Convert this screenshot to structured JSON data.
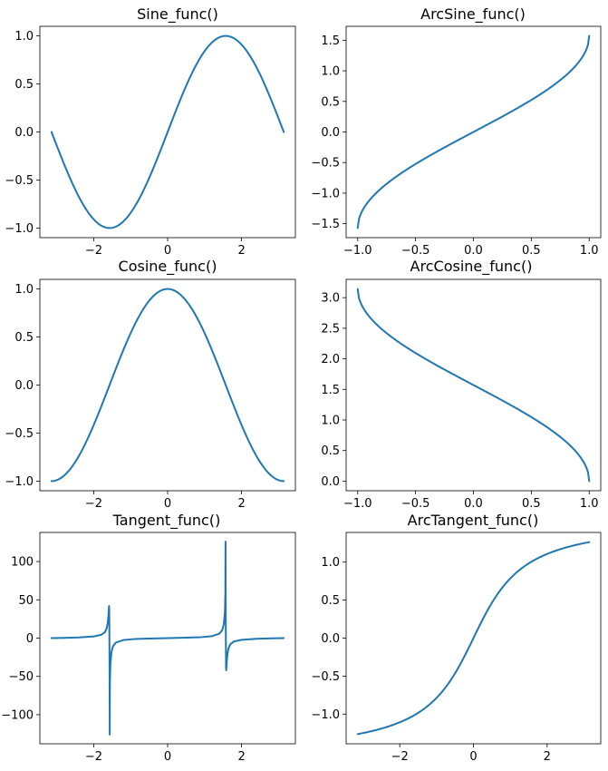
{
  "colors": {
    "line": "#1f77b4",
    "background": "#ffffff",
    "axes": "#000000"
  },
  "chart_data": [
    {
      "type": "line",
      "title": "Sine_func()",
      "func": "sin",
      "xrange": [
        -3.14159,
        3.14159
      ],
      "xlim": [
        -3.456,
        3.456
      ],
      "ylim": [
        -1.1,
        1.1
      ],
      "xticks": [
        -2,
        0,
        2
      ],
      "xtick_labels": [
        "−2",
        "0",
        "2"
      ],
      "yticks": [
        1.0,
        0.5,
        0.0,
        -0.5,
        -1.0
      ],
      "ytick_labels": [
        "1.0",
        "0.5",
        "0.0",
        "−0.5",
        "−1.0"
      ]
    },
    {
      "type": "line",
      "title": "ArcSine_func()",
      "func": "asin",
      "xrange": [
        -1,
        1
      ],
      "xlim": [
        -1.1,
        1.1
      ],
      "ylim": [
        -1.728,
        1.728
      ],
      "xticks": [
        -1.0,
        -0.5,
        0.0,
        0.5,
        1.0
      ],
      "xtick_labels": [
        "−1.0",
        "−0.5",
        "0.0",
        "0.5",
        "1.0"
      ],
      "yticks": [
        1.5,
        1.0,
        0.5,
        0.0,
        -0.5,
        -1.0,
        -1.5
      ],
      "ytick_labels": [
        "1.5",
        "1.0",
        "0.5",
        "0.0",
        "−0.5",
        "−1.0",
        "−1.5"
      ]
    },
    {
      "type": "line",
      "title": "Cosine_func()",
      "func": "cos",
      "xrange": [
        -3.14159,
        3.14159
      ],
      "xlim": [
        -3.456,
        3.456
      ],
      "ylim": [
        -1.1,
        1.1
      ],
      "xticks": [
        -2,
        0,
        2
      ],
      "xtick_labels": [
        "−2",
        "0",
        "2"
      ],
      "yticks": [
        1.0,
        0.5,
        0.0,
        -0.5,
        -1.0
      ],
      "ytick_labels": [
        "1.0",
        "0.5",
        "0.0",
        "−0.5",
        "−1.0"
      ]
    },
    {
      "type": "line",
      "title": "ArcCosine_func()",
      "func": "acos",
      "xrange": [
        -1,
        1
      ],
      "xlim": [
        -1.1,
        1.1
      ],
      "ylim": [
        -0.157,
        3.299
      ],
      "xticks": [
        -1.0,
        -0.5,
        0.0,
        0.5,
        1.0
      ],
      "xtick_labels": [
        "−1.0",
        "−0.5",
        "0.0",
        "0.5",
        "1.0"
      ],
      "yticks": [
        3.0,
        2.5,
        2.0,
        1.5,
        1.0,
        0.5,
        0.0
      ],
      "ytick_labels": [
        "3.0",
        "2.5",
        "2.0",
        "1.5",
        "1.0",
        "0.5",
        "0.0"
      ]
    },
    {
      "type": "line",
      "title": "Tangent_func()",
      "func": "tan",
      "xrange": [
        -3.14159,
        3.14159
      ],
      "xlim": [
        -3.456,
        3.456
      ],
      "ylim": [
        -138,
        138
      ],
      "points": [
        [
          -3.14159,
          0.0
        ],
        [
          -2.8,
          0.34
        ],
        [
          -2.4,
          0.92
        ],
        [
          -2.0,
          2.19
        ],
        [
          -1.8,
          4.29
        ],
        [
          -1.7,
          7.7
        ],
        [
          -1.65,
          12.6
        ],
        [
          -1.62,
          20.0
        ],
        [
          -1.6,
          30.0
        ],
        [
          -1.585,
          42.0
        ],
        [
          -1.58,
          38.0
        ],
        [
          -1.575,
          0.0
        ],
        [
          -1.57,
          -50.0
        ],
        [
          -1.566,
          -126.0
        ],
        [
          -1.562,
          -60.0
        ],
        [
          -1.55,
          -35.0
        ],
        [
          -1.52,
          -18.0
        ],
        [
          -1.48,
          -10.8
        ],
        [
          -1.4,
          -5.8
        ],
        [
          -1.2,
          -2.57
        ],
        [
          -0.9,
          -1.26
        ],
        [
          -0.5,
          -0.55
        ],
        [
          0.0,
          0.0
        ],
        [
          0.5,
          0.55
        ],
        [
          0.9,
          1.26
        ],
        [
          1.2,
          2.57
        ],
        [
          1.4,
          5.8
        ],
        [
          1.48,
          10.8
        ],
        [
          1.52,
          18.0
        ],
        [
          1.55,
          35.0
        ],
        [
          1.562,
          60.0
        ],
        [
          1.566,
          126.0
        ],
        [
          1.57,
          50.0
        ],
        [
          1.575,
          0.0
        ],
        [
          1.58,
          -38.0
        ],
        [
          1.585,
          -42.0
        ],
        [
          1.6,
          -30.0
        ],
        [
          1.62,
          -20.0
        ],
        [
          1.65,
          -12.6
        ],
        [
          1.7,
          -7.7
        ],
        [
          1.8,
          -4.29
        ],
        [
          2.0,
          -2.19
        ],
        [
          2.4,
          -0.92
        ],
        [
          2.8,
          -0.34
        ],
        [
          3.14159,
          0.0
        ]
      ],
      "xticks": [
        -2,
        0,
        2
      ],
      "xtick_labels": [
        "−2",
        "0",
        "2"
      ],
      "yticks": [
        100,
        50,
        0,
        -50,
        -100
      ],
      "ytick_labels": [
        "100",
        "50",
        "0",
        "−50",
        "−100"
      ]
    },
    {
      "type": "line",
      "title": "ArcTangent_func()",
      "func": "atan",
      "xrange": [
        -3.14159,
        3.14159
      ],
      "xlim": [
        -3.456,
        3.456
      ],
      "ylim": [
        -1.39,
        1.39
      ],
      "xticks": [
        -2,
        0,
        2
      ],
      "xtick_labels": [
        "−2",
        "0",
        "2"
      ],
      "yticks": [
        1.0,
        0.5,
        0.0,
        -0.5,
        -1.0
      ],
      "ytick_labels": [
        "1.0",
        "0.5",
        "0.0",
        "−0.5",
        "−1.0"
      ]
    }
  ]
}
